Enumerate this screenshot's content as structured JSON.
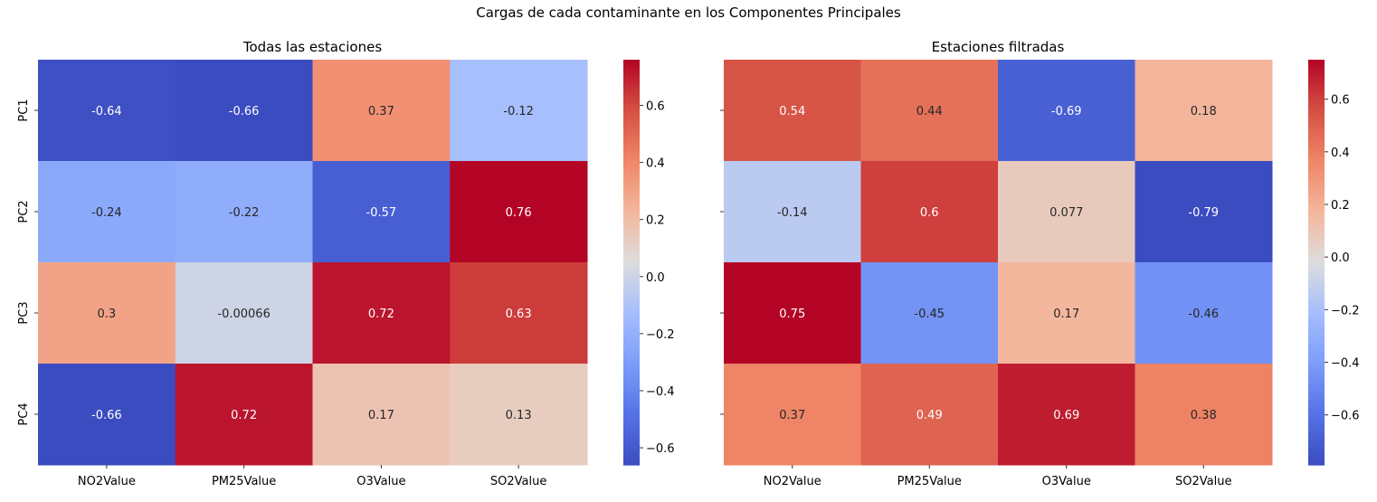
{
  "chart_data": {
    "title": "Cargas de cada contaminante en los Componentes Principales",
    "panels": [
      {
        "type": "heatmap",
        "title": "Todas las estaciones",
        "x_categories": [
          "NO2Value",
          "PM25Value",
          "O3Value",
          "SO2Value"
        ],
        "y_categories": [
          "PC1",
          "PC2",
          "PC3",
          "PC4"
        ],
        "values": [
          [
            -0.64,
            -0.66,
            0.37,
            -0.12
          ],
          [
            -0.24,
            -0.22,
            -0.57,
            0.76
          ],
          [
            0.3,
            -0.00066,
            0.72,
            0.63
          ],
          [
            -0.66,
            0.72,
            0.17,
            0.13
          ]
        ],
        "labels": [
          [
            "-0.64",
            "-0.66",
            "0.37",
            "-0.12"
          ],
          [
            "-0.24",
            "-0.22",
            "-0.57",
            "0.76"
          ],
          [
            "0.3",
            "-0.00066",
            "0.72",
            "0.63"
          ],
          [
            "-0.66",
            "0.72",
            "0.17",
            "0.13"
          ]
        ],
        "colorscale": "coolwarm",
        "vmin": -0.66,
        "vmax": 0.76,
        "colorbar_ticks": [
          {
            "value": 0.6,
            "label": "0.6"
          },
          {
            "value": 0.4,
            "label": "0.4"
          },
          {
            "value": 0.2,
            "label": "0.2"
          },
          {
            "value": 0.0,
            "label": "0.0"
          },
          {
            "value": -0.2,
            "label": "−0.2"
          },
          {
            "value": -0.4,
            "label": "−0.4"
          },
          {
            "value": -0.6,
            "label": "−0.6"
          }
        ]
      },
      {
        "type": "heatmap",
        "title": "Estaciones filtradas",
        "x_categories": [
          "NO2Value",
          "PM25Value",
          "O3Value",
          "SO2Value"
        ],
        "y_categories": [
          "PC1",
          "PC2",
          "PC3",
          "PC4"
        ],
        "values": [
          [
            0.54,
            0.44,
            -0.69,
            0.18
          ],
          [
            -0.14,
            0.6,
            0.077,
            -0.79
          ],
          [
            0.75,
            -0.45,
            0.17,
            -0.46
          ],
          [
            0.37,
            0.49,
            0.69,
            0.38
          ]
        ],
        "labels": [
          [
            "0.54",
            "0.44",
            "-0.69",
            "0.18"
          ],
          [
            "-0.14",
            "0.6",
            "0.077",
            "-0.79"
          ],
          [
            "0.75",
            "-0.45",
            "0.17",
            "-0.46"
          ],
          [
            "0.37",
            "0.49",
            "0.69",
            "0.38"
          ]
        ],
        "colorscale": "coolwarm",
        "vmin": -0.79,
        "vmax": 0.75,
        "colorbar_ticks": [
          {
            "value": 0.6,
            "label": "0.6"
          },
          {
            "value": 0.4,
            "label": "0.4"
          },
          {
            "value": 0.2,
            "label": "0.2"
          },
          {
            "value": 0.0,
            "label": "0.0"
          },
          {
            "value": -0.2,
            "label": "−0.2"
          },
          {
            "value": -0.4,
            "label": "−0.4"
          },
          {
            "value": -0.6,
            "label": "−0.6"
          }
        ]
      }
    ]
  }
}
